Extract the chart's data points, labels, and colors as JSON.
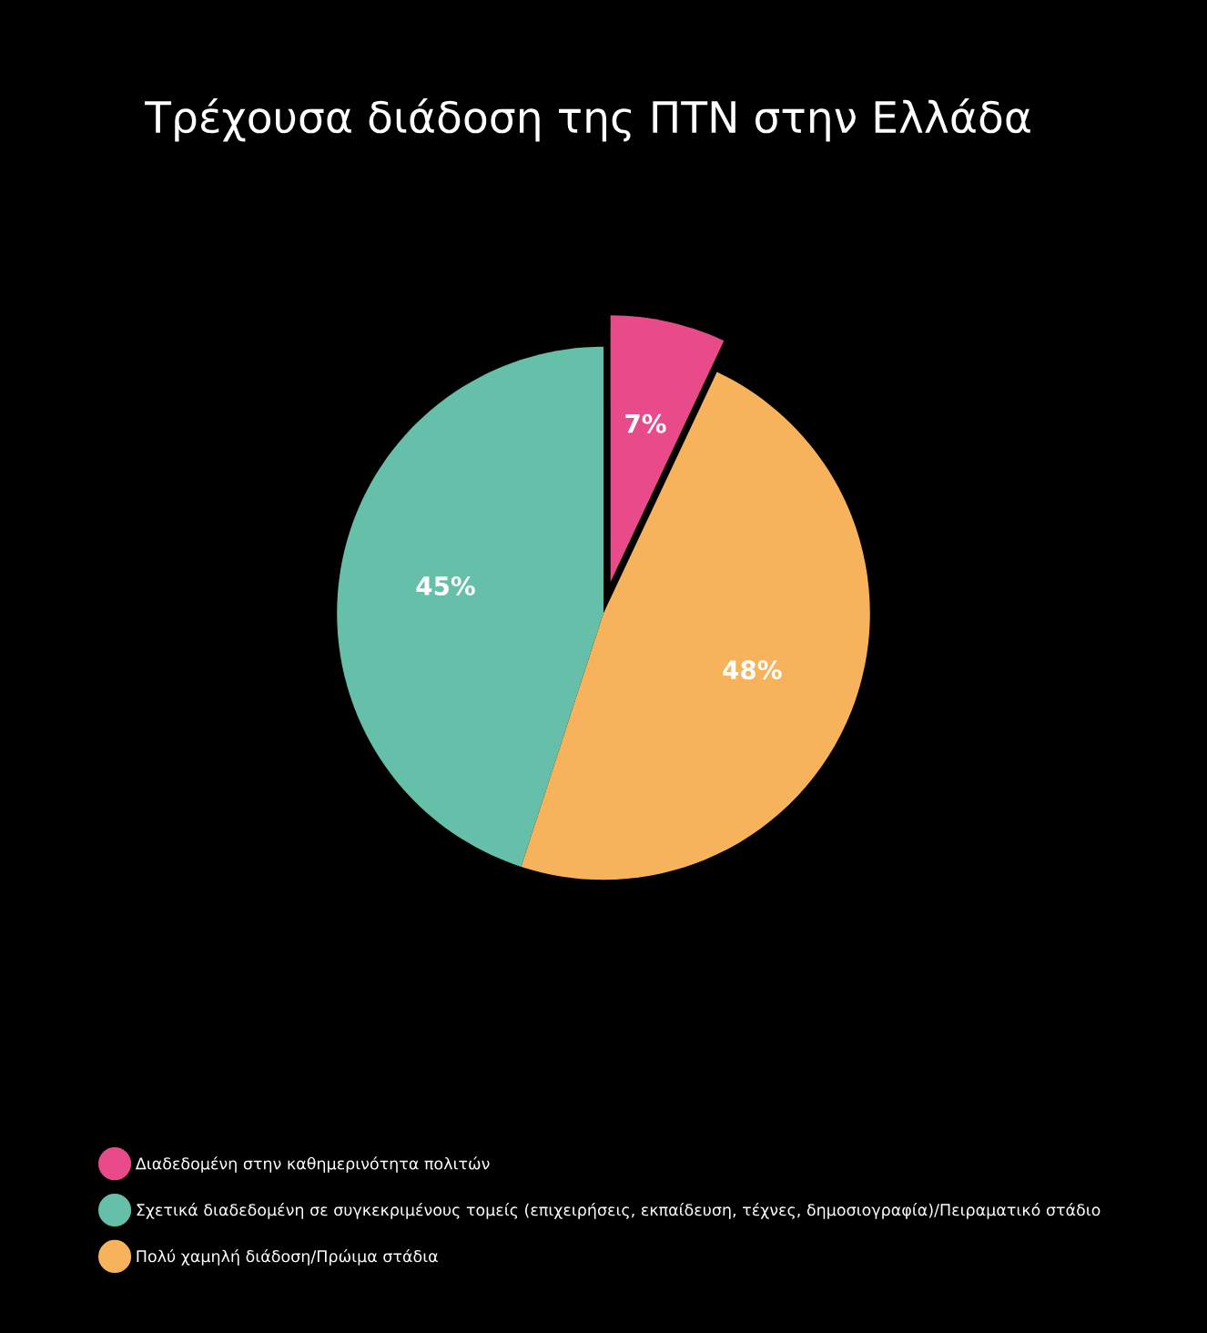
{
  "chart_data": {
    "type": "pie",
    "title": "Τρέχουσα διάδοση της ΠΤΝ στην Ελλάδα",
    "categories": [
      "Διαδεδομένη στην καθημερινότητα πολιτών",
      "Σχετικά διαδεδομένη σε συγκεκριμένους τομείς (επιχειρήσεις, εκπαίδευση, τέχνες, δημοσιογραφία)/Πειραματικό στάδιο",
      "Πολύ χαμηλή διάδοση/Πρώιμα στάδια"
    ],
    "values": [
      7,
      45,
      48
    ],
    "colors": [
      "#e84a8a",
      "#66bfa9",
      "#f7b35b"
    ],
    "value_labels": [
      "7%",
      "45%",
      "48%"
    ],
    "legend": "bottom"
  }
}
